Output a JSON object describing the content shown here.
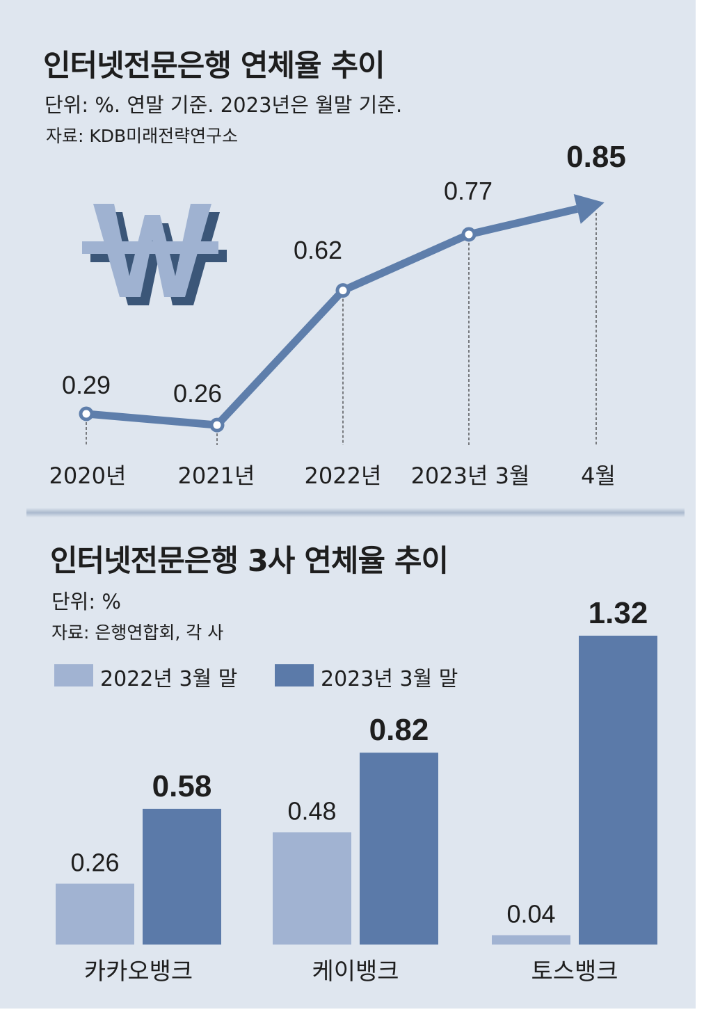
{
  "colors": {
    "background": "#dfe6ef",
    "line": "#5e7eab",
    "light_bar": "#a1b3d2",
    "dark_bar": "#5b7aa9",
    "text": "#1e1e1e"
  },
  "top": {
    "title": "인터넷전문은행 연체율 추이",
    "unit": "단위: %. 연말 기준. 2023년은 월말 기준.",
    "source": "자료: KDB미래전략연구소",
    "icon": "won-sign-icon"
  },
  "bottom": {
    "title": "인터넷전문은행 3사 연체율 추이",
    "unit": "단위: %",
    "source": "자료: 은행연합회, 각 사"
  },
  "chart_data": [
    {
      "type": "line",
      "categories": [
        "2020년",
        "2021년",
        "2022년",
        "2023년 3월",
        "4월"
      ],
      "values": [
        0.29,
        0.26,
        0.62,
        0.77,
        0.85
      ],
      "labels": [
        "0.29",
        "0.26",
        "0.62",
        "0.77",
        "0.85"
      ]
    },
    {
      "type": "bar",
      "categories": [
        "카카오뱅크",
        "케이뱅크",
        "토스뱅크"
      ],
      "series": [
        {
          "name": "2022년 3월 말",
          "values": [
            0.26,
            0.48,
            0.04
          ],
          "labels": [
            "0.26",
            "0.48",
            "0.04"
          ]
        },
        {
          "name": "2023년 3월 말",
          "values": [
            0.58,
            0.82,
            1.32
          ],
          "labels": [
            "0.58",
            "0.82",
            "1.32"
          ]
        }
      ]
    }
  ]
}
